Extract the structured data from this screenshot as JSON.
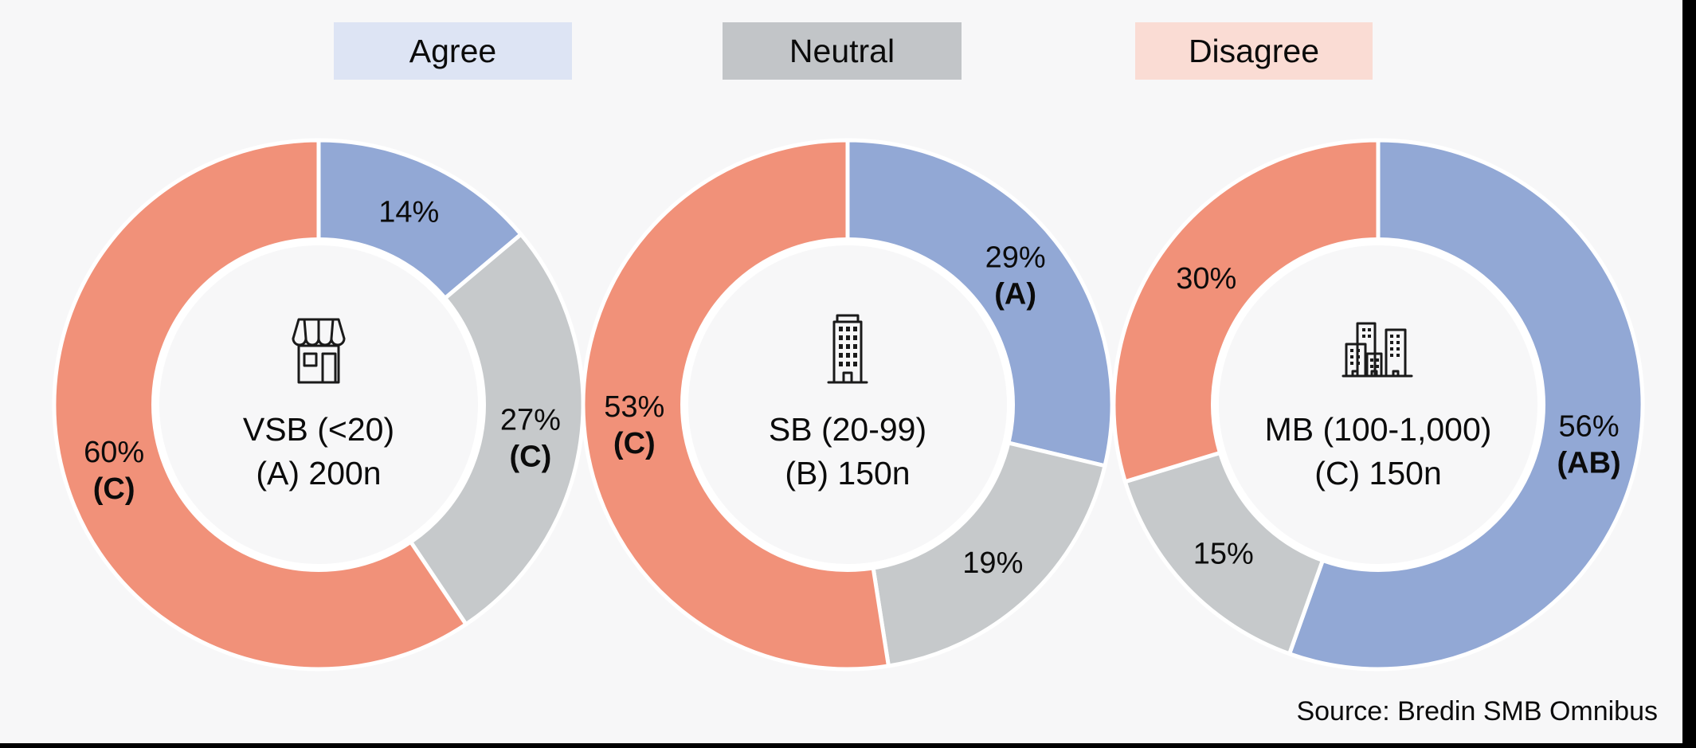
{
  "page": {
    "background_color": "#f7f7f8",
    "source_note": "Source: Bredin SMB Omnibus"
  },
  "legend": {
    "position": "top",
    "items": [
      {
        "label": "Agree",
        "bg": "#dde4f4",
        "series_key": "agree"
      },
      {
        "label": "Neutral",
        "bg": "#c2c5c8",
        "series_key": "neutral"
      },
      {
        "label": "Disagree",
        "bg": "#fadcd4",
        "series_key": "disagree"
      }
    ]
  },
  "chart_data": {
    "type": "pie",
    "subtype": "donut-small-multiples",
    "categories": [
      "Agree",
      "Neutral",
      "Disagree"
    ],
    "series_colors": {
      "agree": "#92a8d5",
      "neutral": "#c6c9cb",
      "disagree": "#f19179"
    },
    "hole_color": "#f7f7f8",
    "segment_outline_color": "#ffffff",
    "start_angle_deg": 0,
    "direction": "clockwise",
    "charts": [
      {
        "icon": "storefront-icon",
        "center": {
          "line1": "VSB (<20)",
          "line2": "(A) 200n"
        },
        "group_code": "A",
        "sample_size": "200n",
        "segments": [
          {
            "key": "agree",
            "name": "Agree",
            "value": 14,
            "label": "14%",
            "sig": ""
          },
          {
            "key": "neutral",
            "name": "Neutral",
            "value": 27,
            "label": "27%",
            "sig": "(C)"
          },
          {
            "key": "disagree",
            "name": "Disagree",
            "value": 60,
            "label": "60%",
            "sig": "(C)"
          }
        ]
      },
      {
        "icon": "office-building-icon",
        "center": {
          "line1": "SB (20-99)",
          "line2": "(B) 150n"
        },
        "group_code": "B",
        "sample_size": "150n",
        "segments": [
          {
            "key": "agree",
            "name": "Agree",
            "value": 29,
            "label": "29%",
            "sig": "(A)"
          },
          {
            "key": "neutral",
            "name": "Neutral",
            "value": 19,
            "label": "19%",
            "sig": ""
          },
          {
            "key": "disagree",
            "name": "Disagree",
            "value": 53,
            "label": "53%",
            "sig": "(C)"
          }
        ]
      },
      {
        "icon": "city-buildings-icon",
        "center": {
          "line1": "MB (100-1,000)",
          "line2": "(C) 150n"
        },
        "group_code": "C",
        "sample_size": "150n",
        "segments": [
          {
            "key": "agree",
            "name": "Agree",
            "value": 56,
            "label": "56%",
            "sig": "(AB)"
          },
          {
            "key": "neutral",
            "name": "Neutral",
            "value": 15,
            "label": "15%",
            "sig": ""
          },
          {
            "key": "disagree",
            "name": "Disagree",
            "value": 30,
            "label": "30%",
            "sig": ""
          }
        ]
      }
    ]
  }
}
